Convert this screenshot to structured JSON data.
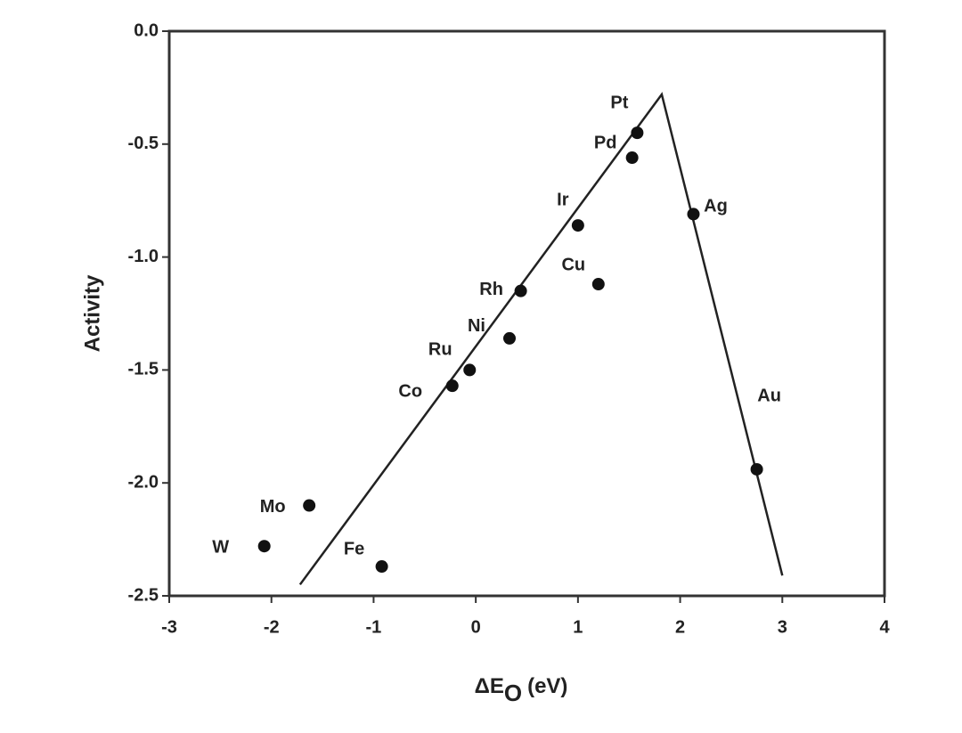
{
  "chart_data": {
    "type": "scatter",
    "xlabel": {
      "main": "ΔE",
      "sub": "O",
      "unit": "(eV)"
    },
    "ylabel": "Activity",
    "labels": [
      "Pt",
      "Pd",
      "Ir",
      "Ag",
      "Cu",
      "Rh",
      "Ni",
      "Ru",
      "Co",
      "Au",
      "Mo",
      "W",
      "Fe"
    ],
    "x": [
      1.58,
      1.53,
      1.0,
      2.13,
      1.2,
      0.44,
      0.33,
      -0.06,
      -0.23,
      2.75,
      -1.63,
      -2.07,
      -0.92
    ],
    "values": [
      -0.45,
      -0.56,
      -0.86,
      -0.81,
      -1.12,
      -1.15,
      -1.36,
      -1.5,
      -1.57,
      -1.94,
      -2.1,
      -2.28,
      -2.37
    ],
    "color": "#111",
    "line": {
      "x": [
        -1.72,
        1.82,
        3.0
      ],
      "values": [
        -2.45,
        -0.28,
        -2.41
      ],
      "color": "#222"
    },
    "xlim": [
      -3,
      4
    ],
    "xticks": [
      -3,
      -2,
      -1,
      0,
      1,
      2,
      3,
      4
    ],
    "ylim": [
      -2.5,
      0
    ],
    "yticks": [
      {
        "value": 0,
        "label": "0.0"
      },
      -0.5,
      {
        "value": -1,
        "label": "-1.0"
      },
      -1.5,
      {
        "value": -2,
        "label": "-2.0"
      },
      -2.5
    ]
  }
}
